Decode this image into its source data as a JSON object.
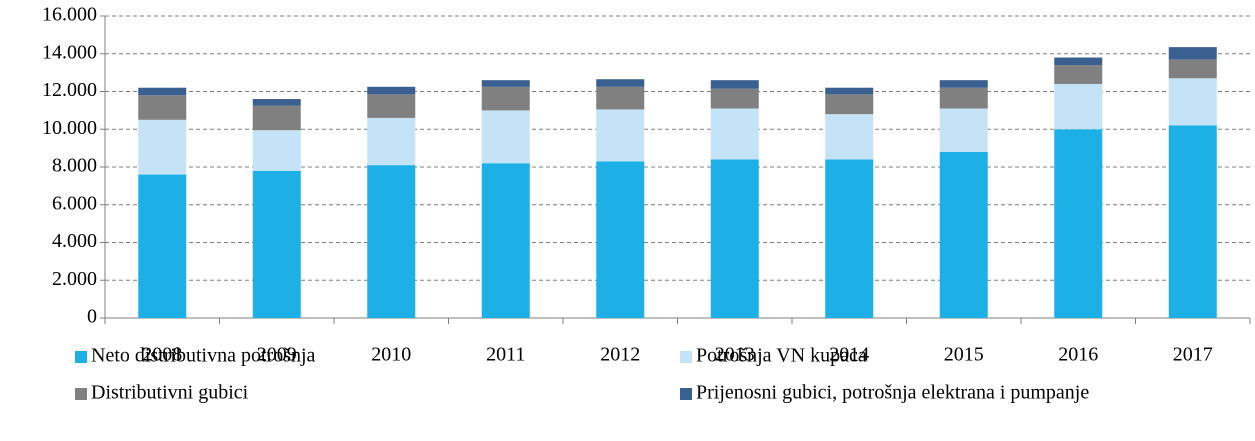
{
  "chart_data": {
    "type": "stacked_bar",
    "categories": [
      "2008",
      "2009",
      "2010",
      "2011",
      "2012",
      "2013",
      "2014",
      "2015",
      "2016",
      "2017"
    ],
    "series": [
      {
        "name": "Neto distributivna potrošnja",
        "color": "#1db0e6",
        "values": [
          7600,
          7800,
          8100,
          8200,
          8300,
          8400,
          8400,
          8800,
          10000,
          10200
        ]
      },
      {
        "name": "Potrošnja VN kupaca",
        "color": "#c5e3f6",
        "values": [
          2900,
          2150,
          2500,
          2800,
          2750,
          2700,
          2400,
          2300,
          2400,
          2500
        ]
      },
      {
        "name": "Distributivni gubici",
        "color": "#808080",
        "values": [
          1300,
          1300,
          1250,
          1250,
          1200,
          1050,
          1050,
          1100,
          1000,
          1000
        ]
      },
      {
        "name": "Prijenosni gubici, potrošnja elektrana i pumpanje",
        "color": "#3a5f91",
        "values": [
          400,
          350,
          400,
          350,
          400,
          450,
          350,
          400,
          400,
          650
        ]
      }
    ],
    "ylim": [
      0,
      16000
    ],
    "yticks": [
      0,
      {
        "value": 2000,
        "label": "2.000"
      },
      {
        "value": 4000,
        "label": "4.000"
      },
      {
        "value": 6000,
        "label": "6.000"
      },
      {
        "value": 8000,
        "label": "8.000"
      },
      {
        "value": 10000,
        "label": "10.000"
      },
      {
        "value": 12000,
        "label": "12.000"
      },
      {
        "value": 14000,
        "label": "14.000"
      },
      {
        "value": 16000,
        "label": "16.000"
      }
    ],
    "grid": true
  }
}
